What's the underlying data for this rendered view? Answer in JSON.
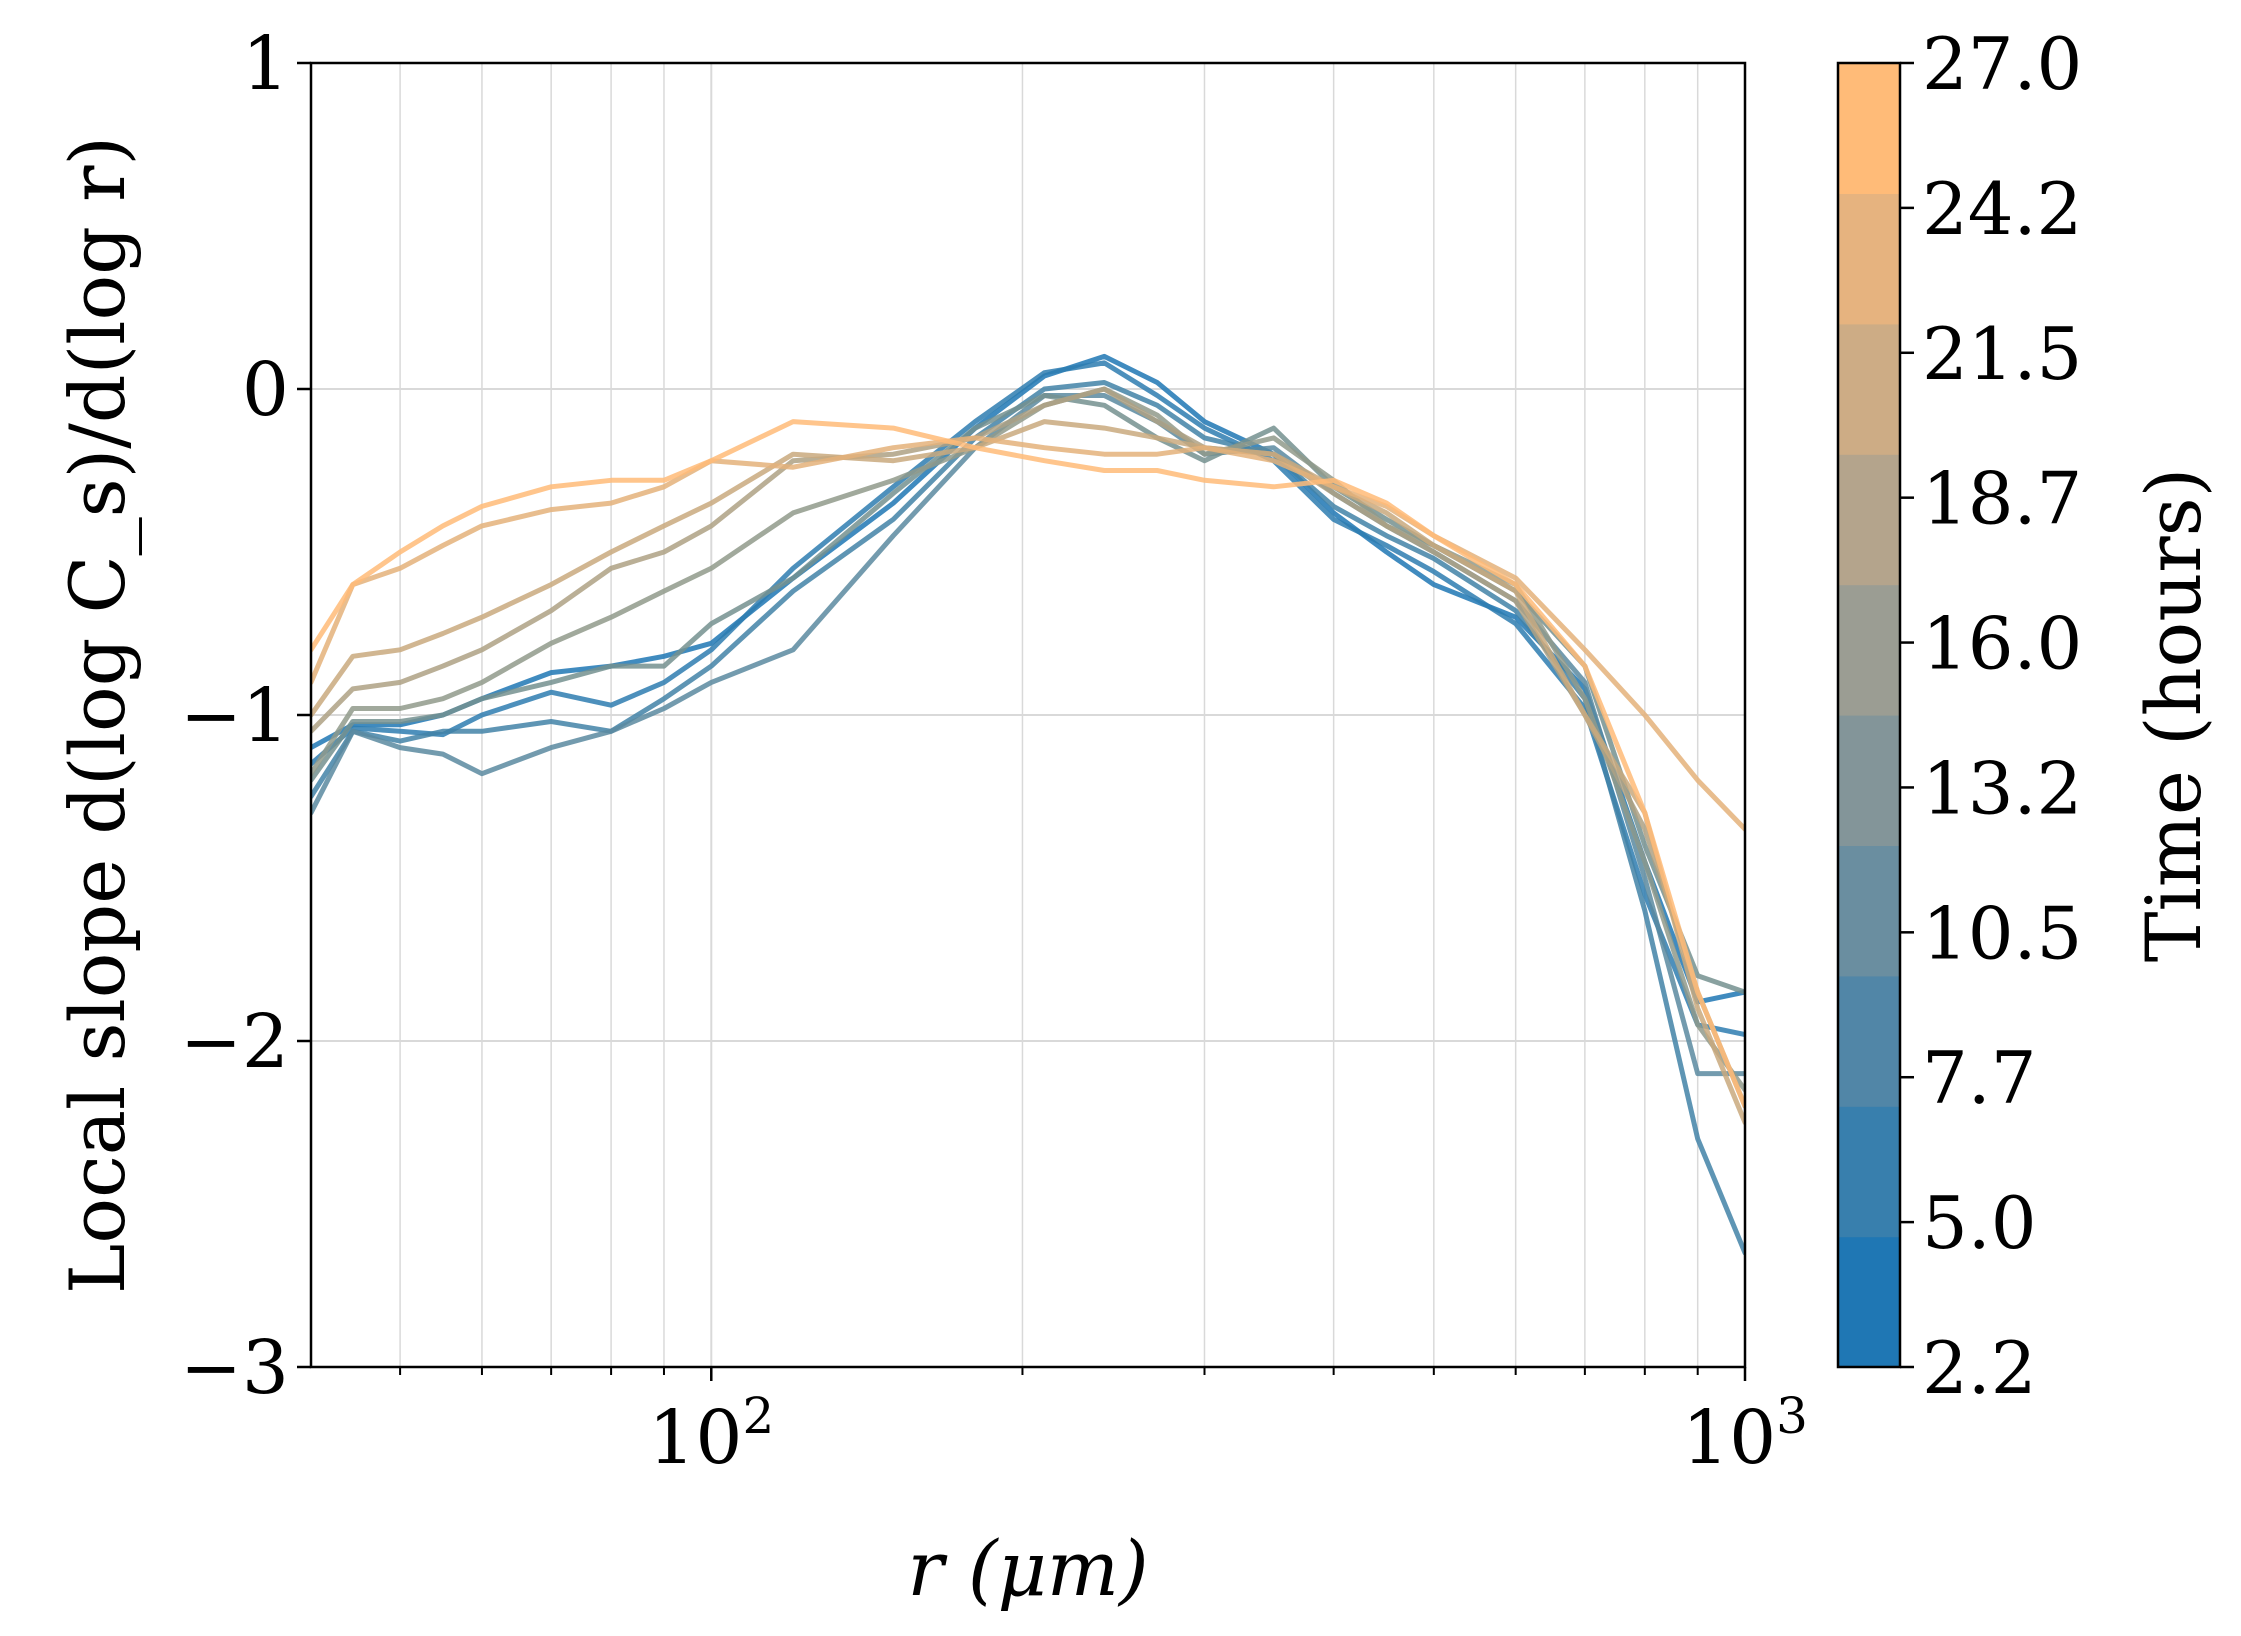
{
  "chart_data": {
    "type": "line",
    "xscale": "log",
    "xlim": [
      41,
      1000
    ],
    "ylim": [
      -3,
      1
    ],
    "xlabel": "r (μm)",
    "ylabel": "Local slope d(log C_s)/d(log r)",
    "x_ticks": [
      {
        "value": 100,
        "base": "10",
        "exp": "2"
      },
      {
        "value": 1000,
        "base": "10",
        "exp": "3"
      }
    ],
    "y_ticks": [
      {
        "value": 1,
        "label": "1"
      },
      {
        "value": 0,
        "label": "0"
      },
      {
        "value": -1,
        "label": "−1"
      },
      {
        "value": -2,
        "label": "−2"
      },
      {
        "value": -3,
        "label": "−3"
      }
    ],
    "grid": true,
    "colorbar": {
      "label": "Time (hours)",
      "ticks": [
        "27.0",
        "24.2",
        "21.5",
        "18.7",
        "16.0",
        "13.2",
        "10.5",
        "7.7",
        "5.0",
        "2.2"
      ],
      "min": 2.2,
      "max": 27.0,
      "color_low": "#1f77b4",
      "color_high": "#ffbb78"
    },
    "x": [
      41,
      45,
      50,
      55,
      60,
      70,
      80,
      90,
      100,
      120,
      150,
      180,
      210,
      240,
      270,
      300,
      350,
      400,
      450,
      500,
      600,
      700,
      800,
      900,
      1000
    ],
    "series": [
      {
        "name": "2.2",
        "color": "#1f77b4",
        "values": [
          -1.1,
          -1.03,
          -1.03,
          -1.0,
          -0.95,
          -0.87,
          -0.85,
          -0.82,
          -0.78,
          -0.58,
          -0.35,
          -0.12,
          0.04,
          0.1,
          0.02,
          -0.1,
          -0.2,
          -0.38,
          -0.5,
          -0.6,
          -0.7,
          -0.92,
          -1.45,
          -1.88,
          -1.85
        ]
      },
      {
        "name": "5.0",
        "color": "#2e7cb0",
        "values": [
          -1.15,
          -1.04,
          -1.05,
          -1.06,
          -1.0,
          -0.93,
          -0.97,
          -0.9,
          -0.8,
          -0.55,
          -0.3,
          -0.1,
          0.05,
          0.08,
          -0.02,
          -0.12,
          -0.22,
          -0.4,
          -0.48,
          -0.56,
          -0.72,
          -0.98,
          -1.55,
          -1.95,
          -1.98
        ]
      },
      {
        "name": "7.7",
        "color": "#4283a7",
        "values": [
          -1.25,
          -1.05,
          -1.08,
          -1.05,
          -1.05,
          -1.02,
          -1.05,
          -0.95,
          -0.85,
          -0.62,
          -0.4,
          -0.15,
          0.0,
          0.02,
          -0.05,
          -0.15,
          -0.2,
          -0.36,
          -0.45,
          -0.52,
          -0.68,
          -0.95,
          -1.6,
          -2.3,
          -2.65
        ]
      },
      {
        "name": "10.5",
        "color": "#5a8aa0",
        "values": [
          -1.3,
          -1.05,
          -1.1,
          -1.12,
          -1.18,
          -1.1,
          -1.05,
          -0.98,
          -0.9,
          -0.8,
          -0.45,
          -0.18,
          -0.02,
          -0.02,
          -0.1,
          -0.2,
          -0.18,
          -0.32,
          -0.42,
          -0.5,
          -0.65,
          -0.9,
          -1.5,
          -2.1,
          -2.1
        ]
      },
      {
        "name": "13.2",
        "color": "#74918f",
        "values": [
          -1.2,
          -1.02,
          -1.02,
          -1.0,
          -0.95,
          -0.9,
          -0.85,
          -0.85,
          -0.72,
          -0.58,
          -0.32,
          -0.12,
          -0.02,
          -0.05,
          -0.15,
          -0.22,
          -0.12,
          -0.3,
          -0.4,
          -0.48,
          -0.62,
          -0.85,
          -1.4,
          -1.8,
          -1.85
        ]
      },
      {
        "name": "16.0",
        "color": "#909a8b",
        "values": [
          -1.18,
          -0.98,
          -0.98,
          -0.95,
          -0.9,
          -0.78,
          -0.7,
          -0.62,
          -0.55,
          -0.38,
          -0.28,
          -0.18,
          -0.05,
          0.0,
          -0.08,
          -0.2,
          -0.15,
          -0.28,
          -0.42,
          -0.48,
          -0.6,
          -0.95,
          -1.45,
          -1.95,
          -2.15
        ]
      },
      {
        "name": "18.7",
        "color": "#aea184",
        "values": [
          -1.05,
          -0.92,
          -0.9,
          -0.85,
          -0.8,
          -0.68,
          -0.55,
          -0.5,
          -0.42,
          -0.22,
          -0.2,
          -0.15,
          -0.05,
          0.0,
          -0.1,
          -0.18,
          -0.2,
          -0.32,
          -0.42,
          -0.5,
          -0.65,
          -1.0,
          -1.35,
          -1.85,
          -2.2
        ]
      },
      {
        "name": "21.5",
        "color": "#c9a97e",
        "values": [
          -1.0,
          -0.82,
          -0.8,
          -0.75,
          -0.7,
          -0.6,
          -0.5,
          -0.42,
          -0.35,
          -0.2,
          -0.22,
          -0.18,
          -0.1,
          -0.12,
          -0.15,
          -0.18,
          -0.2,
          -0.3,
          -0.38,
          -0.48,
          -0.62,
          -1.0,
          -1.3,
          -1.9,
          -2.25
        ]
      },
      {
        "name": "24.2",
        "color": "#e4b27a",
        "values": [
          -0.9,
          -0.6,
          -0.55,
          -0.48,
          -0.42,
          -0.37,
          -0.35,
          -0.3,
          -0.22,
          -0.24,
          -0.18,
          -0.15,
          -0.18,
          -0.2,
          -0.2,
          -0.18,
          -0.22,
          -0.3,
          -0.36,
          -0.45,
          -0.58,
          -0.8,
          -1.0,
          -1.2,
          -1.35
        ]
      },
      {
        "name": "27.0",
        "color": "#ffbb78",
        "values": [
          -0.8,
          -0.6,
          -0.5,
          -0.42,
          -0.36,
          -0.3,
          -0.28,
          -0.28,
          -0.22,
          -0.1,
          -0.12,
          -0.18,
          -0.22,
          -0.25,
          -0.25,
          -0.28,
          -0.3,
          -0.28,
          -0.35,
          -0.45,
          -0.6,
          -0.85,
          -1.3,
          -1.85,
          -2.2
        ]
      }
    ]
  }
}
